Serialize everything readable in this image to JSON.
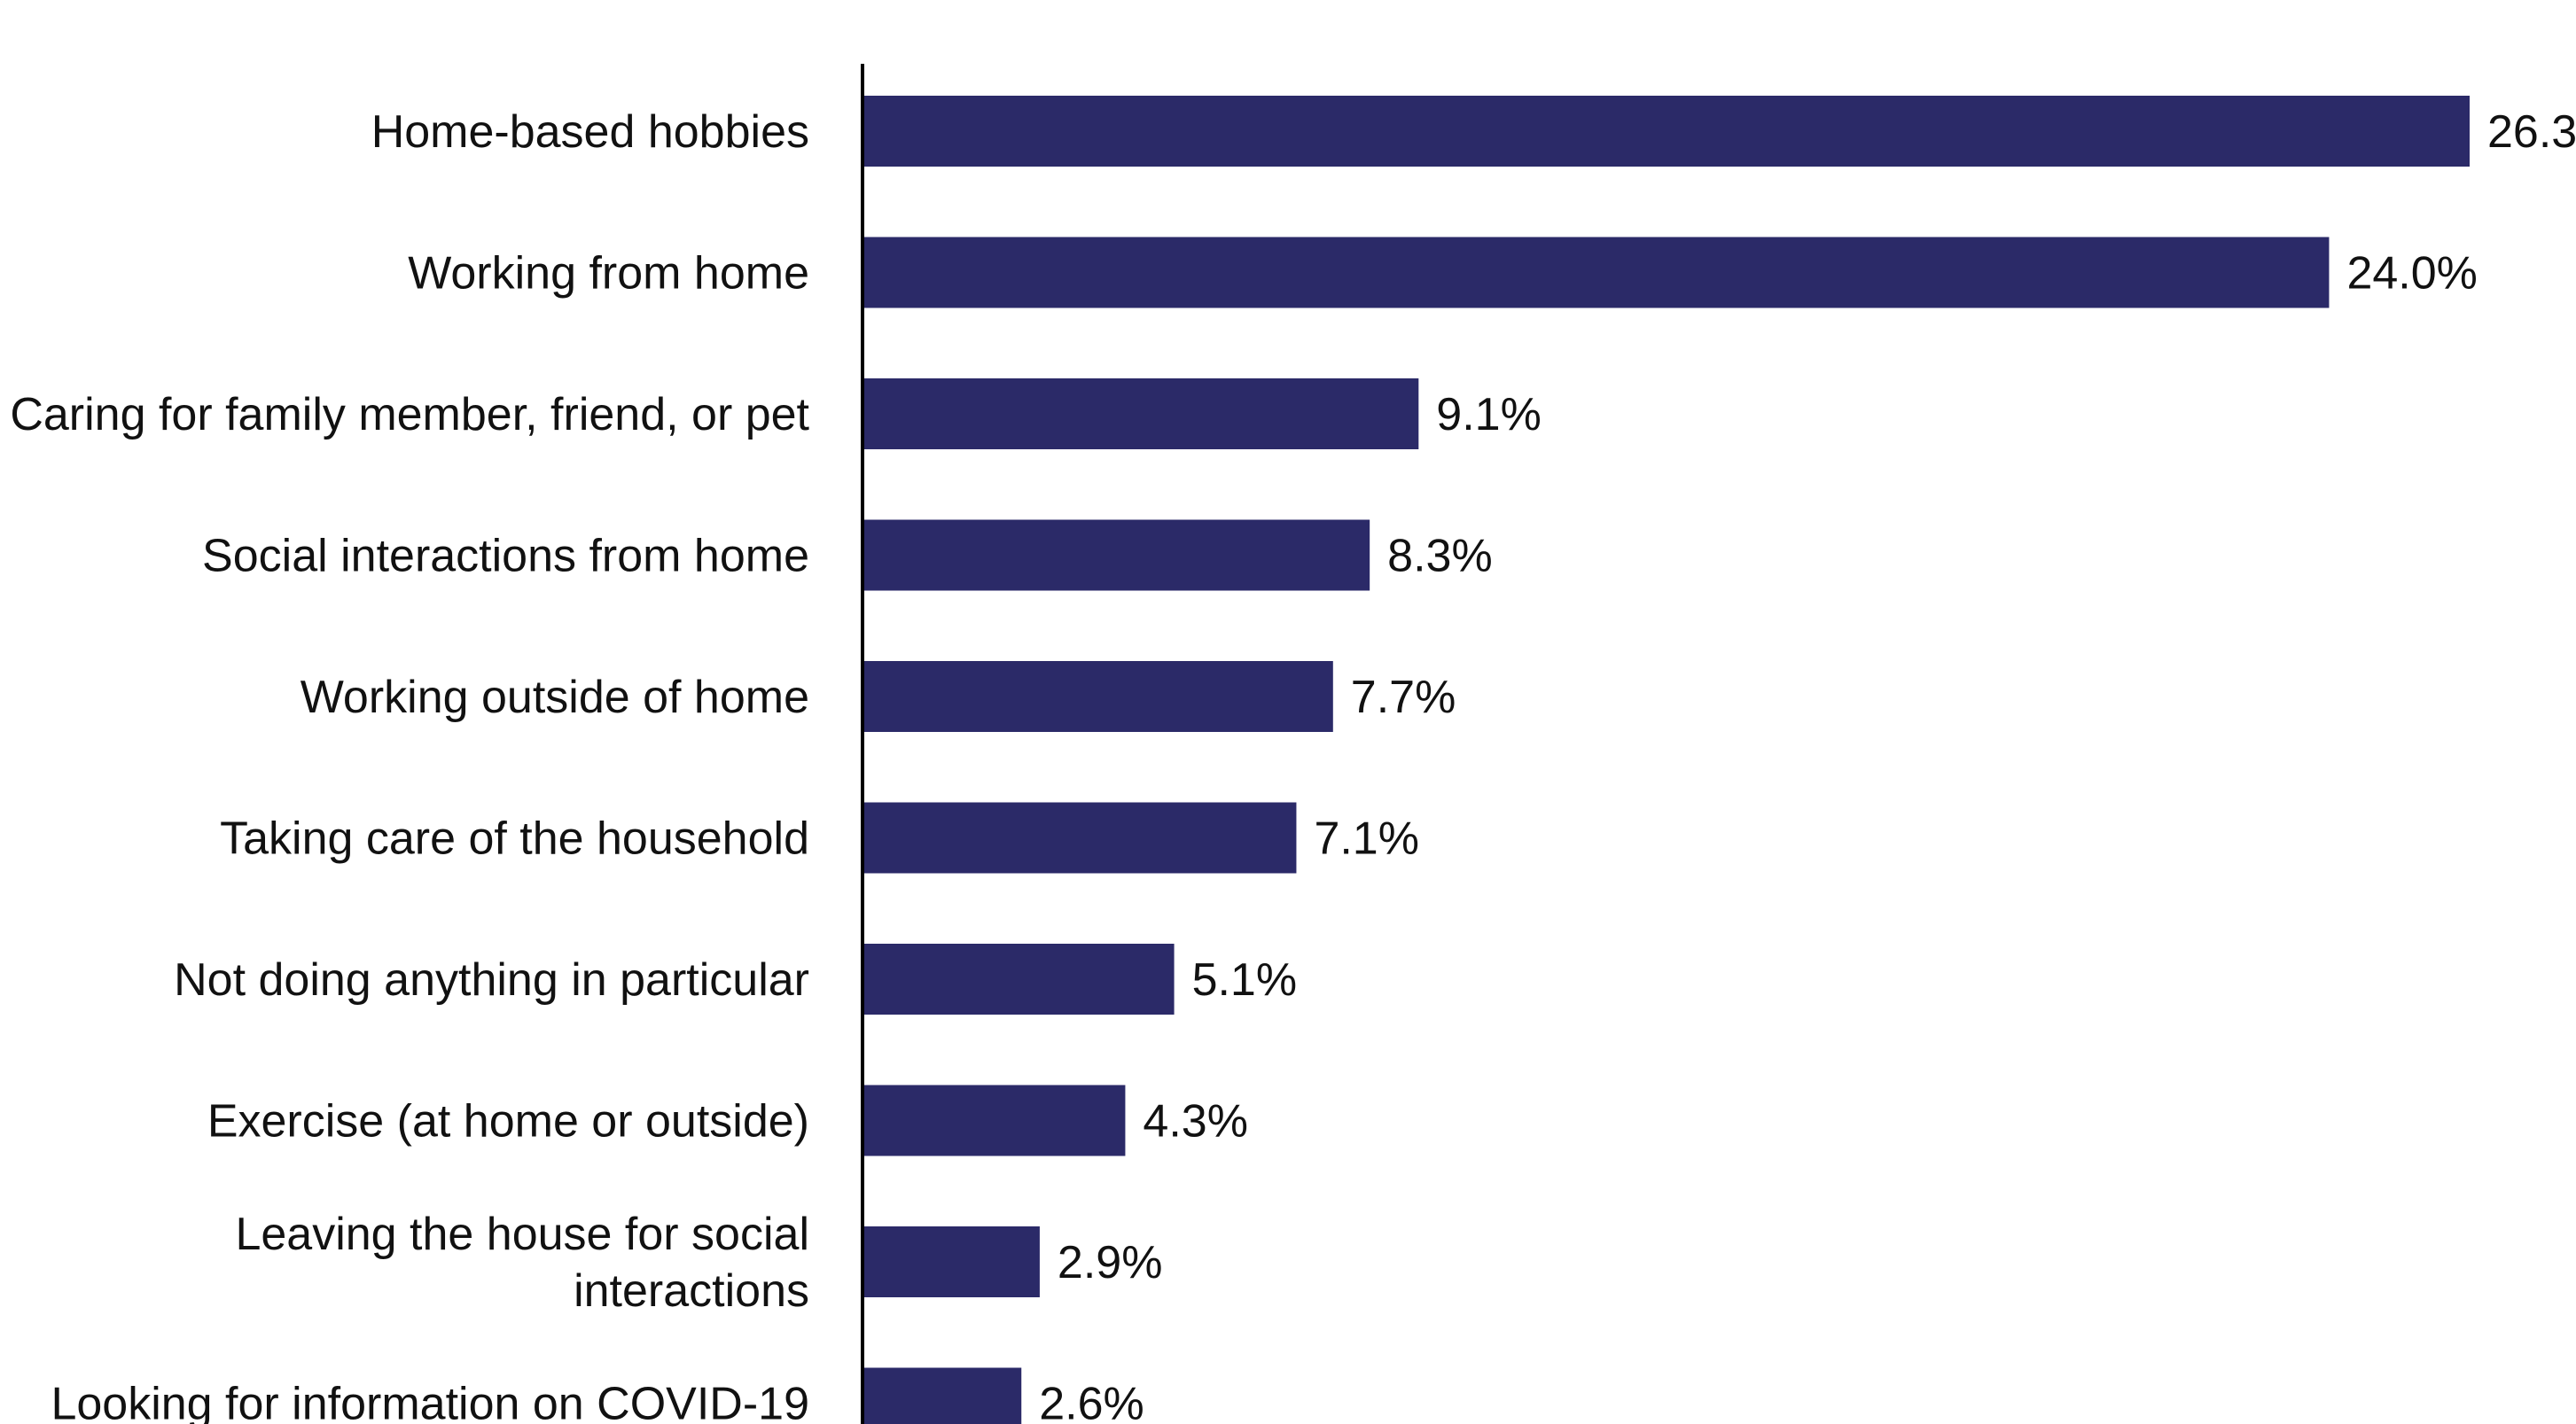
{
  "chart_data": {
    "type": "bar",
    "orientation": "horizontal",
    "categories": [
      "Home-based hobbies",
      "Working from home",
      "Caring for family member, friend, or pet",
      "Social interactions from home",
      "Working outside of home",
      "Taking care of the household",
      "Not doing anything in particular",
      "Exercise (at home or outside)",
      "Leaving the house for social interactions",
      "Looking for information on COVID-19"
    ],
    "values": [
      26.3,
      24.0,
      9.1,
      8.3,
      7.7,
      7.1,
      5.1,
      4.3,
      2.9,
      2.6
    ],
    "value_labels": [
      "26.3",
      "24.0%",
      "9.1%",
      "8.3%",
      "7.7%",
      "7.1%",
      "5.1%",
      "4.3%",
      "2.9%",
      "2.6%"
    ],
    "value_unit": "%",
    "title": "",
    "xlabel": "",
    "ylabel": "",
    "xlim": [
      0,
      26.3
    ],
    "grid": false,
    "legend": "none",
    "colors": {
      "bar": "#2b2a68",
      "axis": "#000000",
      "text": "#111111",
      "background": "#ffffff"
    }
  }
}
